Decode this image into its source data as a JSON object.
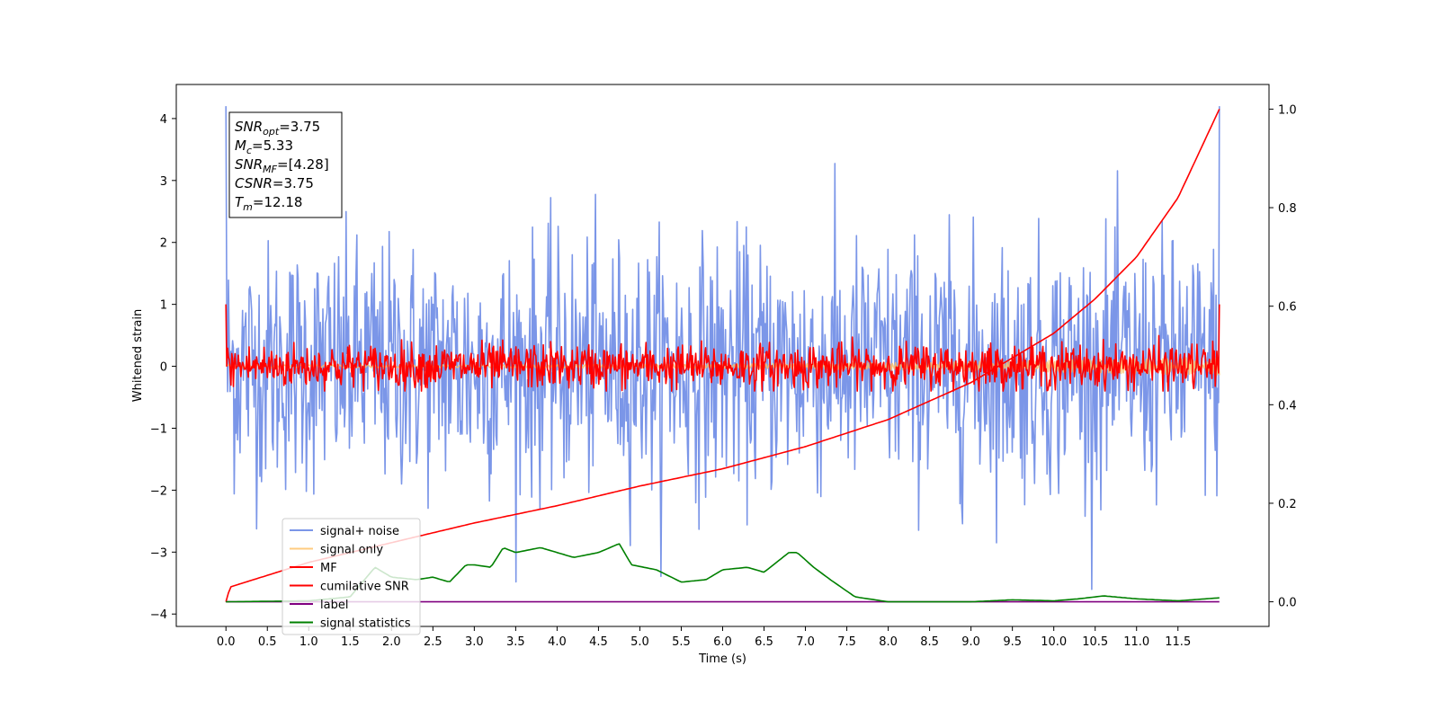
{
  "chart_data": {
    "type": "line",
    "title": "",
    "xlabel": "Time (s)",
    "ylabel": "Whitened strain",
    "y2label": "",
    "xlim": [
      -0.6,
      12.6
    ],
    "ylim": [
      -4.2,
      4.55
    ],
    "y2lim": [
      -0.05,
      1.05
    ],
    "x_ticks": [
      "0.0",
      "0.5",
      "1.0",
      "1.5",
      "2.0",
      "2.5",
      "3.0",
      "3.5",
      "4.0",
      "4.5",
      "5.0",
      "5.5",
      "6.0",
      "6.5",
      "7.0",
      "7.5",
      "8.0",
      "8.5",
      "9.0",
      "9.5",
      "10.0",
      "10.5",
      "11.0",
      "11.5"
    ],
    "x_tick_values": [
      0,
      0.5,
      1,
      1.5,
      2,
      2.5,
      3,
      3.5,
      4,
      4.5,
      5,
      5.5,
      6,
      6.5,
      7,
      7.5,
      8,
      8.5,
      9,
      9.5,
      10,
      10.5,
      11,
      11.5
    ],
    "y_ticks": [
      "4",
      "3",
      "2",
      "1",
      "0",
      "−1",
      "−2",
      "−3",
      "−4"
    ],
    "y_tick_values": [
      4,
      3,
      2,
      1,
      0,
      -1,
      -2,
      -3,
      -4
    ],
    "y2_ticks": [
      "1.0",
      "0.8",
      "0.6",
      "0.4",
      "0.2",
      "0.0"
    ],
    "y2_tick_values": [
      1.0,
      0.8,
      0.6,
      0.4,
      0.2,
      0.0
    ],
    "grid": false,
    "legend_position": "lower-left",
    "series": [
      {
        "name": "signal+ noise",
        "color": "#7b96e8",
        "axis": "left",
        "kind": "noise",
        "x_range": [
          0,
          12.0
        ],
        "mean": 0.0,
        "std": 1.0,
        "min": -3.6,
        "max": 4.2
      },
      {
        "name": "signal only",
        "color": "#ffbf60",
        "axis": "left",
        "kind": "chirp",
        "x_range": [
          0,
          12.0
        ],
        "amplitude_start": 0.02,
        "amplitude_end": 0.15
      },
      {
        "name": "MF",
        "color": "#ff0000",
        "axis": "left",
        "kind": "noise",
        "x_range": [
          0,
          12.0
        ],
        "mean": 0.0,
        "std": 0.18,
        "min": -0.4,
        "max": 1.0
      },
      {
        "name": "cumilative SNR",
        "color": "#ff0000",
        "axis": "right",
        "kind": "curve",
        "x": [
          0,
          0.05,
          1,
          2,
          3,
          4,
          5,
          6,
          7,
          8,
          9,
          10,
          10.5,
          11,
          11.5,
          12.0
        ],
        "values": [
          0.0,
          0.03,
          0.08,
          0.12,
          0.16,
          0.195,
          0.235,
          0.27,
          0.315,
          0.37,
          0.445,
          0.545,
          0.615,
          0.7,
          0.82,
          1.0
        ]
      },
      {
        "name": "label",
        "color": "#800080",
        "axis": "right",
        "kind": "curve",
        "x": [
          0,
          12.0
        ],
        "values": [
          0.0,
          0.0
        ]
      },
      {
        "name": "signal statistics",
        "color": "#008000",
        "axis": "right",
        "kind": "curve",
        "x": [
          0,
          0.5,
          1.0,
          1.5,
          1.8,
          2.0,
          2.3,
          2.5,
          2.7,
          2.9,
          3.0,
          3.2,
          3.35,
          3.5,
          3.8,
          4.0,
          4.2,
          4.5,
          4.75,
          4.9,
          5.2,
          5.5,
          5.8,
          6.0,
          6.3,
          6.5,
          6.8,
          6.9,
          7.1,
          7.3,
          7.6,
          8.0,
          8.5,
          9.0,
          9.5,
          10.0,
          10.3,
          10.6,
          11.0,
          11.5,
          12.0
        ],
        "values": [
          0.0,
          0.001,
          0.002,
          0.01,
          0.07,
          0.05,
          0.045,
          0.05,
          0.04,
          0.075,
          0.075,
          0.07,
          0.11,
          0.1,
          0.11,
          0.1,
          0.09,
          0.1,
          0.118,
          0.075,
          0.065,
          0.04,
          0.045,
          0.065,
          0.07,
          0.06,
          0.1,
          0.1,
          0.07,
          0.045,
          0.01,
          0.0,
          0.0,
          0.0,
          0.004,
          0.002,
          0.006,
          0.012,
          0.006,
          0.002,
          0.008
        ]
      }
    ],
    "info_box": {
      "lines": [
        {
          "main": "SNR",
          "sub": "opt",
          "rest": "=3.75"
        },
        {
          "main": "M",
          "sub": "c",
          "rest": "=5.33"
        },
        {
          "main": "SNR",
          "sub": "MF",
          "rest": "=[4.28]"
        },
        {
          "main": "CSNR",
          "sub": "",
          "rest": "=3.75"
        },
        {
          "main": "T",
          "sub": "m",
          "rest": "=12.18"
        }
      ]
    }
  }
}
